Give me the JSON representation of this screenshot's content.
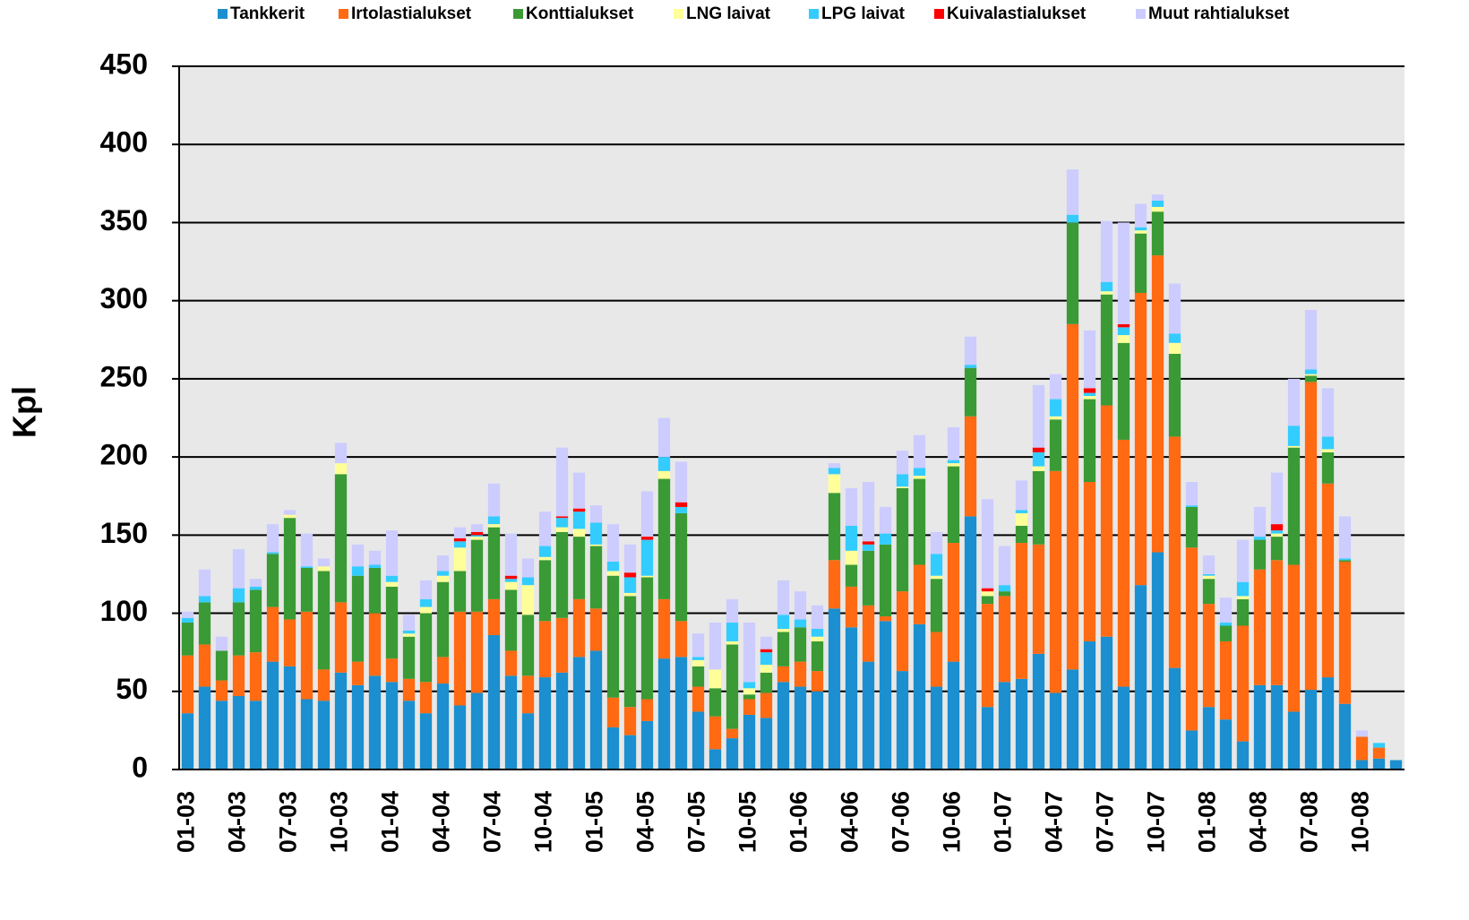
{
  "chart_data": {
    "type": "stacked-bar",
    "y_label": "Kpl",
    "categories": [
      "01-03",
      null,
      null,
      "04-03",
      null,
      null,
      "07-03",
      null,
      null,
      "10-03",
      null,
      null,
      "01-04",
      null,
      null,
      "04-04",
      null,
      null,
      "07-04",
      null,
      null,
      "10-04",
      null,
      null,
      "01-05",
      null,
      null,
      "04-05",
      null,
      null,
      "07-05",
      null,
      null,
      "10-05",
      null,
      null,
      "01-06",
      null,
      null,
      "04-06",
      null,
      null,
      "07-06",
      null,
      null,
      "10-06",
      null,
      null,
      "01-07",
      null,
      null,
      "04-07",
      null,
      null,
      "07-07",
      null,
      null,
      "10-07",
      null,
      null,
      "01-08",
      null,
      null,
      "04-08",
      null,
      null,
      "07-08",
      null,
      null,
      "10-08",
      null,
      null
    ],
    "ylim": [
      0,
      450
    ],
    "yticks": [
      0,
      50,
      100,
      150,
      200,
      250,
      300,
      350,
      400,
      450
    ],
    "grid": true,
    "legend": "top",
    "series": [
      {
        "name": "Tankkerit",
        "color": "#1b8fcf",
        "values": [
          36,
          53,
          44,
          47,
          44,
          69,
          66,
          45,
          44,
          62,
          54,
          60,
          56,
          44,
          36,
          55,
          41,
          49,
          86,
          60,
          36,
          59,
          62,
          72,
          76,
          27,
          22,
          31,
          71,
          72,
          37,
          13,
          20,
          35,
          33,
          56,
          53,
          50,
          103,
          91,
          69,
          95,
          63,
          93,
          53,
          69,
          162,
          40,
          56,
          58,
          74,
          49,
          64,
          82,
          85,
          53,
          118,
          139,
          65,
          25,
          40,
          32,
          18,
          54,
          54,
          37,
          51,
          59,
          42,
          6,
          7,
          6
        ]
      },
      {
        "name": "Irtolastialukset",
        "color": "#ff6a13",
        "values": [
          37,
          27,
          13,
          26,
          31,
          35,
          30,
          56,
          20,
          45,
          15,
          40,
          15,
          14,
          20,
          17,
          60,
          52,
          23,
          16,
          24,
          36,
          35,
          37,
          27,
          19,
          18,
          14,
          38,
          23,
          16,
          21,
          6,
          10,
          16,
          10,
          16,
          13,
          31,
          26,
          36,
          3,
          51,
          38,
          35,
          76,
          64,
          66,
          55,
          87,
          70,
          142,
          221,
          102,
          148,
          158,
          187,
          190,
          148,
          117,
          66,
          50,
          74,
          74,
          80,
          94,
          197,
          124,
          91,
          15,
          7,
          0
        ]
      },
      {
        "name": "Konttialukset",
        "color": "#3a9a35",
        "values": [
          21,
          27,
          19,
          34,
          40,
          34,
          65,
          28,
          63,
          82,
          55,
          29,
          46,
          27,
          44,
          48,
          26,
          46,
          46,
          39,
          39,
          39,
          55,
          40,
          40,
          78,
          71,
          78,
          77,
          69,
          13,
          18,
          54,
          3,
          13,
          22,
          22,
          19,
          43,
          14,
          35,
          46,
          66,
          55,
          34,
          49,
          31,
          5,
          3,
          11,
          47,
          33,
          65,
          53,
          71,
          62,
          38,
          28,
          53,
          26,
          16,
          10,
          17,
          19,
          15,
          75,
          4,
          20,
          1,
          0,
          0,
          0
        ]
      },
      {
        "name": "LNG laivat",
        "color": "#ffff99",
        "values": [
          0,
          0,
          0,
          0,
          0,
          0,
          2,
          0,
          3,
          7,
          0,
          0,
          3,
          2,
          4,
          4,
          15,
          2,
          2,
          5,
          19,
          2,
          3,
          5,
          1,
          3,
          2,
          1,
          5,
          0,
          4,
          12,
          2,
          4,
          5,
          2,
          0,
          3,
          12,
          9,
          0,
          0,
          1,
          2,
          2,
          2,
          0,
          3,
          0,
          8,
          3,
          2,
          0,
          2,
          2,
          5,
          2,
          3,
          7,
          0,
          2,
          0,
          2,
          0,
          2,
          1,
          1,
          2,
          0,
          0,
          0,
          0
        ]
      },
      {
        "name": "LPG laivat",
        "color": "#33ccff",
        "values": [
          3,
          4,
          0,
          9,
          2,
          1,
          0,
          1,
          0,
          0,
          6,
          2,
          4,
          2,
          5,
          3,
          4,
          1,
          5,
          2,
          5,
          7,
          6,
          11,
          14,
          6,
          10,
          23,
          9,
          4,
          2,
          0,
          12,
          4,
          8,
          9,
          5,
          5,
          4,
          16,
          4,
          7,
          8,
          5,
          14,
          2,
          2,
          0,
          4,
          2,
          9,
          11,
          5,
          2,
          6,
          5,
          2,
          4,
          6,
          1,
          1,
          2,
          9,
          2,
          2,
          13,
          3,
          8,
          1,
          0,
          3,
          0
        ]
      },
      {
        "name": "Kuivalastialukset",
        "color": "#ff0000",
        "values": [
          0,
          0,
          0,
          0,
          0,
          0,
          0,
          0,
          0,
          0,
          0,
          0,
          0,
          0,
          0,
          0,
          2,
          2,
          0,
          2,
          0,
          0,
          1,
          2,
          0,
          0,
          3,
          2,
          0,
          3,
          0,
          0,
          0,
          0,
          2,
          0,
          0,
          0,
          0,
          0,
          2,
          0,
          0,
          0,
          0,
          0,
          0,
          2,
          0,
          0,
          3,
          0,
          0,
          3,
          0,
          2,
          0,
          0,
          0,
          0,
          0,
          0,
          0,
          0,
          4,
          0,
          0,
          0,
          0,
          0,
          0,
          0
        ]
      },
      {
        "name": "Muut rahtialukset",
        "color": "#ccccff",
        "values": [
          4,
          17,
          9,
          25,
          5,
          18,
          3,
          21,
          5,
          13,
          14,
          9,
          29,
          10,
          12,
          10,
          7,
          5,
          21,
          27,
          12,
          22,
          44,
          23,
          11,
          24,
          18,
          29,
          25,
          26,
          15,
          30,
          15,
          38,
          8,
          22,
          18,
          15,
          3,
          24,
          38,
          17,
          15,
          21,
          14,
          21,
          18,
          57,
          25,
          19,
          40,
          16,
          29,
          37,
          39,
          65,
          15,
          4,
          32,
          15,
          12,
          16,
          27,
          19,
          33,
          30,
          38,
          31,
          27,
          4,
          0,
          0
        ]
      }
    ]
  }
}
